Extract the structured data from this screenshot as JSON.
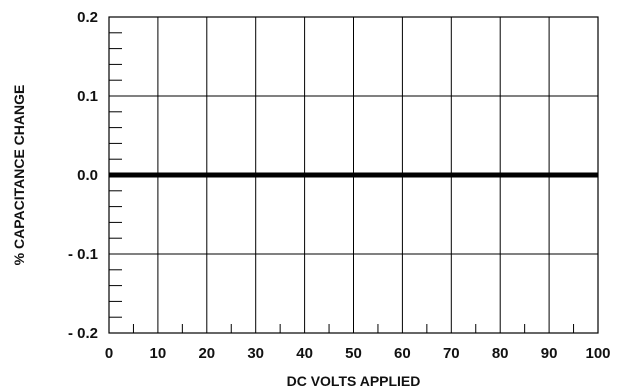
{
  "chart_data": {
    "type": "line",
    "title": "",
    "xlabel": "DC VOLTS APPLIED",
    "ylabel": "% CAPACITANCE CHANGE",
    "xlim": [
      0,
      100
    ],
    "ylim": [
      -0.2,
      0.2
    ],
    "x_ticks": [
      0,
      10,
      20,
      30,
      40,
      50,
      60,
      70,
      80,
      90,
      100
    ],
    "x_tick_labels": [
      "0",
      "10",
      "20",
      "30",
      "40",
      "50",
      "60",
      "70",
      "80",
      "90",
      "100"
    ],
    "x_minor_step": 5,
    "y_ticks": [
      0.2,
      0.1,
      0.0,
      -0.1,
      -0.2
    ],
    "y_tick_labels": [
      "0.2",
      "0.1",
      "0.0",
      "- 0.1",
      "- 0.2"
    ],
    "y_minor_step": 0.02,
    "grid": true,
    "series": [
      {
        "x": [
          0,
          100
        ],
        "values": [
          0.0,
          0.0
        ],
        "color": "#000000"
      }
    ]
  }
}
